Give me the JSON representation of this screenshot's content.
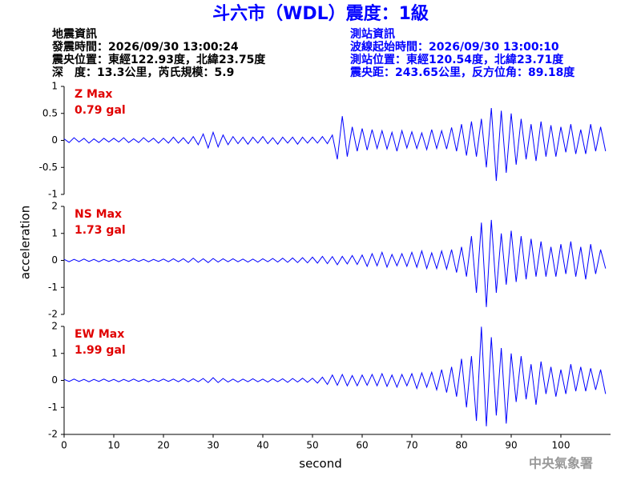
{
  "header": {
    "title": "斗六市（WDL）震度：1級",
    "left": [
      "地震資訊",
      "發震時間：2026/09/30 13:00:24",
      "震央位置：東經122.93度，北緯23.75度",
      "深　度：13.3公里，芮氏規模：5.9"
    ],
    "right": [
      "測站資訊",
      "波線起始時間：2026/09/30 13:00:10",
      "測站位置：東經120.54度，北緯23.71度",
      "震央距：243.65公里，反方位角：89.18度"
    ],
    "footer": "中央氣象署"
  },
  "chart_data": [
    {
      "type": "line",
      "annotations": [
        "Z Max",
        "0.79 gal"
      ],
      "color": "#0000ff",
      "xlim": [
        0,
        110
      ],
      "ylim": [
        -1,
        1
      ],
      "yticks": [
        -1,
        -0.5,
        0,
        0.5,
        1
      ],
      "x": [
        0,
        1,
        2,
        3,
        4,
        5,
        6,
        7,
        8,
        9,
        10,
        11,
        12,
        13,
        14,
        15,
        16,
        17,
        18,
        19,
        20,
        21,
        22,
        23,
        24,
        25,
        26,
        27,
        28,
        29,
        30,
        31,
        32,
        33,
        34,
        35,
        36,
        37,
        38,
        39,
        40,
        41,
        42,
        43,
        44,
        45,
        46,
        47,
        48,
        49,
        50,
        51,
        52,
        53,
        54,
        55,
        56,
        57,
        58,
        59,
        60,
        61,
        62,
        63,
        64,
        65,
        66,
        67,
        68,
        69,
        70,
        71,
        72,
        73,
        74,
        75,
        76,
        77,
        78,
        79,
        80,
        81,
        82,
        83,
        84,
        85,
        86,
        87,
        88,
        89,
        90,
        91,
        92,
        93,
        94,
        95,
        96,
        97,
        98,
        99,
        100,
        101,
        102,
        103,
        104,
        105,
        106,
        107,
        108,
        109
      ],
      "values": [
        0.03,
        -0.04,
        0.05,
        -0.03,
        0.04,
        -0.05,
        0.03,
        -0.04,
        0.04,
        -0.03,
        0.04,
        -0.03,
        0.05,
        -0.04,
        0.03,
        -0.04,
        0.05,
        -0.03,
        0.04,
        -0.05,
        0.04,
        -0.05,
        0.06,
        -0.05,
        0.05,
        -0.06,
        0.07,
        -0.08,
        0.12,
        -0.14,
        0.15,
        -0.12,
        0.1,
        -0.08,
        0.07,
        -0.06,
        0.06,
        -0.07,
        0.06,
        -0.05,
        0.07,
        -0.06,
        0.05,
        -0.07,
        0.06,
        -0.05,
        0.06,
        -0.07,
        0.06,
        -0.05,
        0.06,
        -0.05,
        0.07,
        -0.06,
        0.1,
        -0.35,
        0.45,
        -0.3,
        0.25,
        -0.2,
        0.22,
        -0.18,
        0.2,
        -0.15,
        0.18,
        -0.16,
        0.15,
        -0.2,
        0.18,
        -0.14,
        0.16,
        -0.15,
        0.14,
        -0.17,
        0.2,
        -0.15,
        0.18,
        -0.16,
        0.24,
        -0.2,
        0.3,
        -0.28,
        0.35,
        -0.3,
        0.4,
        -0.5,
        0.6,
        -0.75,
        0.55,
        -0.6,
        0.5,
        -0.45,
        0.4,
        -0.35,
        0.3,
        -0.38,
        0.35,
        -0.3,
        0.28,
        -0.3,
        0.25,
        -0.22,
        0.3,
        -0.25,
        0.2,
        -0.25,
        0.3,
        -0.2,
        0.25,
        -0.2
      ]
    },
    {
      "type": "line",
      "annotations": [
        "NS Max",
        "1.73 gal"
      ],
      "ylabel": "acceleration",
      "color": "#0000ff",
      "xlim": [
        0,
        110
      ],
      "ylim": [
        -2,
        2
      ],
      "yticks": [
        -2,
        -1,
        0,
        1,
        2
      ],
      "x": [
        0,
        1,
        2,
        3,
        4,
        5,
        6,
        7,
        8,
        9,
        10,
        11,
        12,
        13,
        14,
        15,
        16,
        17,
        18,
        19,
        20,
        21,
        22,
        23,
        24,
        25,
        26,
        27,
        28,
        29,
        30,
        31,
        32,
        33,
        34,
        35,
        36,
        37,
        38,
        39,
        40,
        41,
        42,
        43,
        44,
        45,
        46,
        47,
        48,
        49,
        50,
        51,
        52,
        53,
        54,
        55,
        56,
        57,
        58,
        59,
        60,
        61,
        62,
        63,
        64,
        65,
        66,
        67,
        68,
        69,
        70,
        71,
        72,
        73,
        74,
        75,
        76,
        77,
        78,
        79,
        80,
        81,
        82,
        83,
        84,
        85,
        86,
        87,
        88,
        89,
        90,
        91,
        92,
        93,
        94,
        95,
        96,
        97,
        98,
        99,
        100,
        101,
        102,
        103,
        104,
        105,
        106,
        107,
        108,
        109
      ],
      "values": [
        0.04,
        -0.05,
        0.04,
        -0.04,
        0.05,
        -0.04,
        0.04,
        -0.05,
        0.04,
        -0.04,
        0.04,
        -0.05,
        0.04,
        -0.04,
        0.05,
        -0.04,
        0.04,
        -0.05,
        0.04,
        -0.04,
        0.05,
        -0.05,
        0.06,
        -0.05,
        0.06,
        -0.07,
        0.08,
        -0.07,
        0.06,
        -0.08,
        0.07,
        -0.06,
        0.06,
        -0.05,
        0.06,
        -0.05,
        0.05,
        -0.06,
        0.05,
        -0.06,
        0.06,
        -0.05,
        0.07,
        -0.06,
        0.08,
        -0.07,
        0.09,
        -0.08,
        0.1,
        -0.09,
        0.12,
        -0.1,
        0.15,
        -0.12,
        0.14,
        -0.16,
        0.15,
        -0.13,
        0.18,
        -0.15,
        0.2,
        -0.22,
        0.25,
        -0.2,
        0.3,
        -0.25,
        0.22,
        -0.2,
        0.25,
        -0.22,
        0.3,
        -0.25,
        0.35,
        -0.3,
        0.28,
        -0.3,
        0.35,
        -0.32,
        0.4,
        -0.45,
        0.5,
        -0.6,
        0.9,
        -1.2,
        1.4,
        -1.73,
        1.5,
        -1.2,
        1.0,
        -0.9,
        1.1,
        -0.8,
        0.9,
        -0.7,
        0.8,
        -0.6,
        0.7,
        -0.6,
        0.5,
        -0.6,
        0.6,
        -0.5,
        0.7,
        -0.6,
        0.5,
        -0.7,
        0.6,
        -0.5,
        0.4,
        -0.3
      ]
    },
    {
      "type": "line",
      "annotations": [
        "EW Max",
        "1.99 gal"
      ],
      "xlabel": "second",
      "color": "#0000ff",
      "xlim": [
        0,
        110
      ],
      "ylim": [
        -2,
        2
      ],
      "yticks": [
        -2,
        -1,
        0,
        1,
        2
      ],
      "xticks": [
        0,
        10,
        20,
        30,
        40,
        50,
        60,
        70,
        80,
        90,
        100
      ],
      "x": [
        0,
        1,
        2,
        3,
        4,
        5,
        6,
        7,
        8,
        9,
        10,
        11,
        12,
        13,
        14,
        15,
        16,
        17,
        18,
        19,
        20,
        21,
        22,
        23,
        24,
        25,
        26,
        27,
        28,
        29,
        30,
        31,
        32,
        33,
        34,
        35,
        36,
        37,
        38,
        39,
        40,
        41,
        42,
        43,
        44,
        45,
        46,
        47,
        48,
        49,
        50,
        51,
        52,
        53,
        54,
        55,
        56,
        57,
        58,
        59,
        60,
        61,
        62,
        63,
        64,
        65,
        66,
        67,
        68,
        69,
        70,
        71,
        72,
        73,
        74,
        75,
        76,
        77,
        78,
        79,
        80,
        81,
        82,
        83,
        84,
        85,
        86,
        87,
        88,
        89,
        90,
        91,
        92,
        93,
        94,
        95,
        96,
        97,
        98,
        99,
        100,
        101,
        102,
        103,
        104,
        105,
        106,
        107,
        108,
        109
      ],
      "values": [
        0.04,
        -0.04,
        0.05,
        -0.04,
        0.04,
        -0.05,
        0.04,
        -0.04,
        0.05,
        -0.04,
        0.04,
        -0.05,
        0.04,
        -0.04,
        0.05,
        -0.04,
        0.04,
        -0.05,
        0.04,
        -0.04,
        0.05,
        -0.04,
        0.05,
        -0.05,
        0.06,
        -0.05,
        0.06,
        -0.05,
        0.07,
        -0.08,
        0.1,
        -0.08,
        0.07,
        -0.06,
        0.05,
        -0.06,
        0.05,
        -0.05,
        0.06,
        -0.05,
        0.05,
        -0.06,
        0.06,
        -0.05,
        0.06,
        -0.07,
        0.07,
        -0.06,
        0.08,
        -0.07,
        0.08,
        -0.1,
        0.12,
        -0.15,
        0.2,
        -0.18,
        0.22,
        -0.2,
        0.18,
        -0.2,
        0.2,
        -0.18,
        0.22,
        -0.2,
        0.25,
        -0.22,
        0.2,
        -0.25,
        0.22,
        -0.2,
        0.25,
        -0.3,
        0.28,
        -0.25,
        0.3,
        -0.35,
        0.4,
        -0.45,
        0.5,
        -0.6,
        0.8,
        -1.0,
        0.9,
        -1.5,
        1.99,
        -1.7,
        1.6,
        -1.3,
        1.2,
        -1.6,
        1.0,
        -0.8,
        0.9,
        -0.7,
        0.6,
        -0.9,
        0.7,
        -0.5,
        0.5,
        -0.6,
        0.4,
        -0.5,
        0.6,
        -0.4,
        0.5,
        -0.4,
        0.45,
        -0.35,
        0.4,
        -0.5
      ]
    }
  ]
}
